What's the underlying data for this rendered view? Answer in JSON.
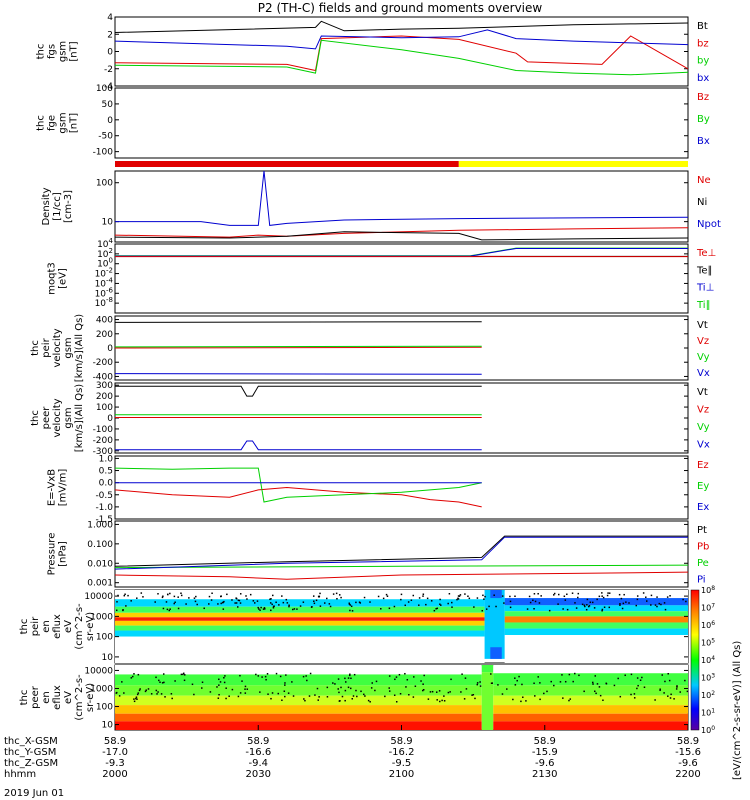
{
  "title": "P2 (TH-C) fields and ground moments overview",
  "date_label": "2019 Jun 01",
  "colors": {
    "black": "#000000",
    "red": "#e00000",
    "green": "#00d000",
    "blue": "#0000d0",
    "yellow": "#ffff00"
  },
  "x_axis": {
    "ticks": [
      "2000",
      "2030",
      "2100",
      "2130",
      "2200"
    ],
    "rows": [
      {
        "label": "thc_X-GSM",
        "values": [
          "58.9",
          "58.9",
          "58.9",
          "58.9",
          "58.9"
        ]
      },
      {
        "label": "thc_Y-GSM",
        "values": [
          "-17.0",
          "-16.6",
          "-16.2",
          "-15.9",
          "-15.6"
        ]
      },
      {
        "label": "thc_Z-GSM",
        "values": [
          "-9.3",
          "-9.4",
          "-9.5",
          "-9.6",
          "-9.6"
        ]
      },
      {
        "label": "hhmm",
        "values": [
          "2000",
          "2030",
          "2100",
          "2130",
          "2200"
        ]
      }
    ]
  },
  "chart_data": [
    {
      "id": "fgs",
      "type": "line",
      "ylabel": [
        "thc",
        "fgs",
        "gsm",
        "[nT]"
      ],
      "ylim": [
        -4,
        4
      ],
      "ticks": [
        "4",
        "2",
        "0",
        "-2",
        "-4"
      ],
      "legend": [
        {
          "name": "Bt",
          "color": "black"
        },
        {
          "name": "bz",
          "color": "red"
        },
        {
          "name": "by",
          "color": "green"
        },
        {
          "name": "bx",
          "color": "blue"
        }
      ],
      "series": [
        {
          "name": "Bt",
          "color": "black",
          "x": [
            0,
            0.35,
            0.36,
            0.4,
            0.5,
            0.6,
            0.7,
            0.8,
            0.9,
            1
          ],
          "y": [
            2.2,
            2.8,
            3.5,
            2.4,
            2.6,
            2.7,
            2.9,
            3.1,
            3.2,
            3.3
          ]
        },
        {
          "name": "bz",
          "color": "red",
          "x": [
            0,
            0.3,
            0.35,
            0.36,
            0.5,
            0.6,
            0.7,
            0.72,
            0.85,
            0.9,
            1
          ],
          "y": [
            -1.3,
            -1.5,
            -2.2,
            1.5,
            1.8,
            1.4,
            -0.2,
            -1.2,
            -1.5,
            1.8,
            -2.0
          ]
        },
        {
          "name": "by",
          "color": "green",
          "x": [
            0,
            0.3,
            0.35,
            0.36,
            0.5,
            0.6,
            0.7,
            0.8,
            0.9,
            1
          ],
          "y": [
            -1.6,
            -1.8,
            -2.5,
            1.3,
            0.2,
            -0.8,
            -2.2,
            -2.5,
            -2.7,
            -2.4
          ]
        },
        {
          "name": "bx",
          "color": "blue",
          "x": [
            0,
            0.3,
            0.35,
            0.36,
            0.5,
            0.6,
            0.65,
            0.7,
            0.8,
            0.9,
            1
          ],
          "y": [
            1.2,
            0.6,
            0.3,
            1.8,
            1.6,
            1.7,
            2.5,
            1.5,
            1.2,
            1.0,
            0.8
          ]
        }
      ]
    },
    {
      "id": "fge",
      "type": "line",
      "ylabel": [
        "thc",
        "fge",
        "gsm",
        "[nT]"
      ],
      "ylim": [
        -120,
        100
      ],
      "ticks": [
        "100",
        "50",
        "0",
        "-50",
        "-100"
      ],
      "legend": [
        {
          "name": "Bz",
          "color": "red"
        },
        {
          "name": "By",
          "color": "green"
        },
        {
          "name": "Bx",
          "color": "blue"
        }
      ],
      "series": []
    },
    {
      "id": "mode",
      "type": "bar",
      "segments": [
        {
          "from": 0,
          "to": 0.6,
          "color": "red"
        },
        {
          "from": 0.6,
          "to": 1,
          "color": "yellow"
        }
      ]
    },
    {
      "id": "density",
      "type": "line",
      "ylabel": [
        "Density",
        "[1/cc]",
        "[cm-3]"
      ],
      "scale": "log",
      "ylim": [
        3,
        200
      ],
      "ticks": [
        "100",
        "10"
      ],
      "legend": [
        {
          "name": "Ne",
          "color": "red"
        },
        {
          "name": "Ni",
          "color": "black"
        },
        {
          "name": "Npot",
          "color": "blue"
        }
      ],
      "series": [
        {
          "name": "Npot",
          "color": "blue",
          "x": [
            0,
            0.15,
            0.2,
            0.25,
            0.26,
            0.27,
            0.3,
            0.4,
            0.6,
            0.8,
            1
          ],
          "y": [
            10,
            10,
            8,
            8,
            200,
            8,
            9,
            11,
            12,
            12.5,
            13
          ]
        },
        {
          "name": "Ne",
          "color": "red",
          "x": [
            0,
            0.2,
            0.25,
            0.3,
            0.4,
            0.6,
            0.8,
            1
          ],
          "y": [
            4.5,
            4,
            4.5,
            4.2,
            5,
            6,
            6.5,
            7
          ]
        },
        {
          "name": "Ni",
          "color": "black",
          "x": [
            0,
            0.2,
            0.3,
            0.4,
            0.6,
            0.64,
            0.8,
            1
          ],
          "y": [
            4,
            3.8,
            4.2,
            5.5,
            5,
            3.4,
            3.6,
            3.8
          ]
        }
      ]
    },
    {
      "id": "temp",
      "type": "line",
      "ylabel": [
        "moqt3",
        "[eV]"
      ],
      "scale": "log",
      "ylim": [
        1e-10,
        10000.0
      ],
      "ticks": [
        "10^4",
        "10^2",
        "10^0",
        "10^-2",
        "10^-4",
        "10^-6",
        "10^-8"
      ],
      "legend": [
        {
          "name": "Te⊥",
          "color": "red"
        },
        {
          "name": "Te∥",
          "color": "black"
        },
        {
          "name": "Ti⊥",
          "color": "blue"
        },
        {
          "name": "Ti∥",
          "color": "green"
        }
      ],
      "series": [
        {
          "name": "Te∥",
          "color": "black",
          "x": [
            0,
            1
          ],
          "y": [
            30,
            30
          ]
        },
        {
          "name": "Ti∥",
          "color": "green",
          "x": [
            0,
            0.62,
            0.7,
            1
          ],
          "y": [
            40,
            40,
            1500,
            1500
          ]
        },
        {
          "name": "Ti⊥",
          "color": "blue",
          "x": [
            0,
            0.62,
            0.7,
            1
          ],
          "y": [
            35,
            35,
            1200,
            1200
          ]
        },
        {
          "name": "Te⊥",
          "color": "red",
          "x": [
            0,
            1
          ],
          "y": [
            28,
            28
          ]
        }
      ]
    },
    {
      "id": "peir_vel",
      "type": "line",
      "ylabel": [
        "thc",
        "peir",
        "velocity",
        "gsm",
        "[km/s](All Qs)"
      ],
      "ylim": [
        -450,
        450
      ],
      "ticks": [
        "400",
        "200",
        "0",
        "-200",
        "-400"
      ],
      "legend": [
        {
          "name": "Vt",
          "color": "black"
        },
        {
          "name": "Vz",
          "color": "red"
        },
        {
          "name": "Vy",
          "color": "green"
        },
        {
          "name": "Vx",
          "color": "blue"
        }
      ],
      "series": [
        {
          "name": "Vt",
          "color": "black",
          "x": [
            0,
            0.64
          ],
          "y": [
            360,
            370
          ]
        },
        {
          "name": "Vz",
          "color": "red",
          "x": [
            0,
            0.64
          ],
          "y": [
            0,
            10
          ]
        },
        {
          "name": "Vy",
          "color": "green",
          "x": [
            0,
            0.64
          ],
          "y": [
            15,
            25
          ]
        },
        {
          "name": "Vx",
          "color": "blue",
          "x": [
            0,
            0.64
          ],
          "y": [
            -360,
            -370
          ]
        }
      ]
    },
    {
      "id": "peer_vel",
      "type": "line",
      "ylabel": [
        "thc",
        "peer",
        "velocity",
        "gsm",
        "[km/s](All Qs)"
      ],
      "ylim": [
        -320,
        320
      ],
      "ticks": [
        "300",
        "200",
        "100",
        "0",
        "-100",
        "-200",
        "-300"
      ],
      "legend": [
        {
          "name": "Vt",
          "color": "black"
        },
        {
          "name": "Vz",
          "color": "red"
        },
        {
          "name": "Vy",
          "color": "green"
        },
        {
          "name": "Vx",
          "color": "blue"
        }
      ],
      "series": [
        {
          "name": "Vt",
          "color": "black",
          "x": [
            0,
            0.22,
            0.23,
            0.24,
            0.25,
            0.64
          ],
          "y": [
            290,
            290,
            200,
            200,
            290,
            290
          ]
        },
        {
          "name": "Vz",
          "color": "red",
          "x": [
            0,
            0.64
          ],
          "y": [
            5,
            5
          ]
        },
        {
          "name": "Vy",
          "color": "green",
          "x": [
            0,
            0.64
          ],
          "y": [
            30,
            30
          ]
        },
        {
          "name": "Vx",
          "color": "blue",
          "x": [
            0,
            0.22,
            0.23,
            0.24,
            0.25,
            0.64
          ],
          "y": [
            -290,
            -290,
            -210,
            -210,
            -290,
            -290
          ]
        }
      ]
    },
    {
      "id": "efield",
      "type": "line",
      "ylabel": [
        "E=-VxB",
        "[mV/m]"
      ],
      "ylim": [
        -1.5,
        1.1
      ],
      "ticks": [
        "1.0",
        "0.5",
        "0.0",
        "-0.5",
        "-1.0",
        "-1.5"
      ],
      "legend": [
        {
          "name": "Ez",
          "color": "red"
        },
        {
          "name": "Ey",
          "color": "green"
        },
        {
          "name": "Ex",
          "color": "blue"
        }
      ],
      "series": [
        {
          "name": "Ez",
          "color": "red",
          "x": [
            0,
            0.1,
            0.2,
            0.25,
            0.3,
            0.4,
            0.5,
            0.55,
            0.6,
            0.64
          ],
          "y": [
            -0.3,
            -0.5,
            -0.6,
            -0.3,
            -0.2,
            -0.4,
            -0.5,
            -0.7,
            -0.8,
            -1.0
          ]
        },
        {
          "name": "Ey",
          "color": "green",
          "x": [
            0,
            0.1,
            0.2,
            0.25,
            0.26,
            0.3,
            0.4,
            0.5,
            0.6,
            0.64
          ],
          "y": [
            0.6,
            0.55,
            0.6,
            0.6,
            -0.8,
            -0.6,
            -0.5,
            -0.4,
            -0.2,
            0.0
          ]
        },
        {
          "name": "Ex",
          "color": "blue",
          "x": [
            0,
            0.64
          ],
          "y": [
            0.0,
            0.0
          ]
        }
      ]
    },
    {
      "id": "pressure",
      "type": "line",
      "ylabel": [
        "Pressure",
        "[nPa]"
      ],
      "scale": "log",
      "ylim": [
        0.0006,
        1.5
      ],
      "ticks": [
        "1.000",
        "0.100",
        "0.010",
        "0.001"
      ],
      "legend": [
        {
          "name": "Pt",
          "color": "black"
        },
        {
          "name": "Pb",
          "color": "red"
        },
        {
          "name": "Pe",
          "color": "green"
        },
        {
          "name": "Pi",
          "color": "blue"
        }
      ],
      "series": [
        {
          "name": "Pt",
          "color": "black",
          "x": [
            0,
            0.3,
            0.64,
            0.68,
            1
          ],
          "y": [
            0.007,
            0.012,
            0.02,
            0.25,
            0.25
          ]
        },
        {
          "name": "Pb",
          "color": "red",
          "x": [
            0,
            0.2,
            0.3,
            0.5,
            0.8,
            1
          ],
          "y": [
            0.0025,
            0.002,
            0.0015,
            0.0025,
            0.003,
            0.0035
          ]
        },
        {
          "name": "Pe",
          "color": "green",
          "x": [
            0,
            0.5,
            1
          ],
          "y": [
            0.006,
            0.007,
            0.008
          ]
        },
        {
          "name": "Pi",
          "color": "blue",
          "x": [
            0,
            0.3,
            0.64,
            0.68,
            1
          ],
          "y": [
            0.005,
            0.01,
            0.015,
            0.22,
            0.22
          ]
        }
      ]
    },
    {
      "id": "peir_spec",
      "type": "heatmap",
      "ylabel": [
        "thc",
        "peir",
        "en",
        "eflux",
        "eV",
        "(cm^2-s-",
        "sr-eV)"
      ],
      "scale": "log",
      "ylim": [
        5,
        20000
      ],
      "ticks": [
        "10000",
        "1000",
        "100",
        "10"
      ]
    },
    {
      "id": "peer_spec",
      "type": "heatmap",
      "ylabel": [
        "thc",
        "peer",
        "en",
        "eflux",
        "eV",
        "(cm^2-s-",
        "sr-eV)"
      ],
      "scale": "log",
      "ylim": [
        5,
        20000
      ],
      "ticks": [
        "10000",
        "1000",
        "100",
        "10"
      ]
    },
    {
      "id": "colorbar",
      "type": "colorbar",
      "label": "[eV/(cm^2-s-sr-eV)] (All Qs)",
      "ticks": [
        "10^8",
        "10^7",
        "10^6",
        "10^5",
        "10^4",
        "10^3",
        "10^2",
        "10^1",
        "10^0"
      ]
    }
  ]
}
